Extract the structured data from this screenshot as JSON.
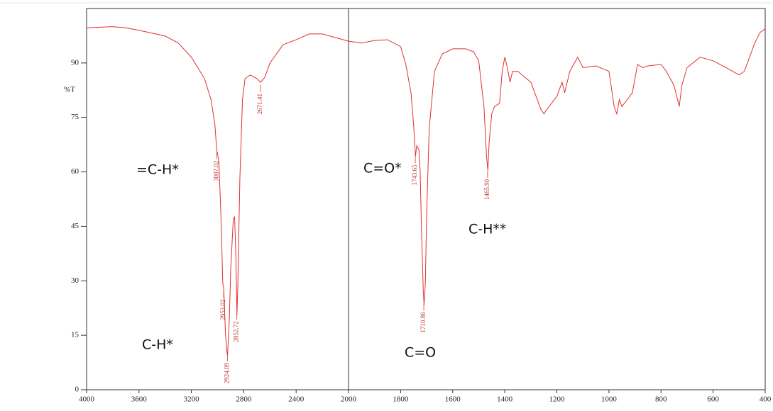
{
  "chart_data": {
    "type": "line",
    "ylabel": "%T",
    "color": "#e03030",
    "xlim": [
      4000,
      400
    ],
    "xbreak": 2000,
    "xticks": [
      4000,
      3600,
      3200,
      2800,
      2400,
      2000,
      1800,
      1600,
      1400,
      1200,
      1000,
      800,
      600,
      400
    ],
    "ylim": [
      0,
      105
    ],
    "yticks": [
      0,
      15,
      30,
      45,
      60,
      75,
      90
    ],
    "x": [
      4000,
      3800,
      3700,
      3600,
      3400,
      3300,
      3200,
      3100,
      3050,
      3020,
      3007,
      3000,
      2990,
      2975,
      2960,
      2953,
      2940,
      2930,
      2924,
      2910,
      2900,
      2880,
      2870,
      2860,
      2852,
      2845,
      2830,
      2810,
      2790,
      2750,
      2700,
      2671,
      2640,
      2600,
      2500,
      2400,
      2300,
      2200,
      2100,
      2000,
      1950,
      1900,
      1850,
      1800,
      1780,
      1760,
      1750,
      1743,
      1738,
      1730,
      1725,
      1720,
      1713,
      1710,
      1705,
      1700,
      1690,
      1670,
      1640,
      1600,
      1550,
      1520,
      1500,
      1480,
      1470,
      1465,
      1460,
      1450,
      1440,
      1420,
      1410,
      1400,
      1390,
      1380,
      1370,
      1350,
      1300,
      1260,
      1250,
      1230,
      1200,
      1180,
      1170,
      1150,
      1120,
      1100,
      1050,
      1000,
      980,
      970,
      960,
      950,
      930,
      910,
      890,
      870,
      850,
      800,
      780,
      750,
      730,
      720,
      700,
      650,
      600,
      550,
      500,
      480,
      460,
      440,
      420,
      400
    ],
    "values": [
      99.7,
      100,
      99.7,
      99,
      97.4,
      95.5,
      91.6,
      85.7,
      79.9,
      73,
      66.2,
      65,
      63,
      48.7,
      29.2,
      28,
      15.6,
      10.7,
      9.5,
      19.5,
      33,
      46.8,
      47.7,
      37,
      20.5,
      29,
      58,
      80,
      85.7,
      86.7,
      85.7,
      84.7,
      86,
      90,
      95,
      96.4,
      98,
      98,
      97,
      96,
      95.5,
      96.2,
      96.4,
      94.5,
      89.6,
      81.8,
      73,
      64.3,
      67.2,
      66.2,
      60.4,
      44.8,
      27.3,
      23.4,
      29.2,
      48.7,
      72,
      87.7,
      92.5,
      93.9,
      93.9,
      93.1,
      90.6,
      78,
      64.3,
      60.4,
      68.2,
      76,
      78,
      78.9,
      87.7,
      91.6,
      88.7,
      84.7,
      87.7,
      87.7,
      84.7,
      77,
      76,
      78,
      80.8,
      84.7,
      81.8,
      87.7,
      91.6,
      88.7,
      89.2,
      87.7,
      78,
      76,
      79.9,
      78,
      79.9,
      81.8,
      89.6,
      88.7,
      89.2,
      89.6,
      87.7,
      83.8,
      78,
      83.8,
      88.7,
      91.6,
      90.6,
      88.7,
      86.7,
      87.7,
      91.6,
      95.5,
      98.4,
      99.4
    ],
    "peaks": [
      {
        "x": 3007.02,
        "label": "3007.02"
      },
      {
        "x": 2953.02,
        "label": "2953.02"
      },
      {
        "x": 2924.09,
        "label": "2924.09"
      },
      {
        "x": 2852.72,
        "label": "2852.72"
      },
      {
        "x": 2671.41,
        "label": "2671.41"
      },
      {
        "x": 1743.65,
        "label": "1743.65"
      },
      {
        "x": 1710.86,
        "label": "1710.86"
      },
      {
        "x": 1465.9,
        "label": "1465.90"
      }
    ],
    "annotations": [
      "=C-H*",
      "C-H*",
      "C=O*",
      "C=O",
      "C-H**"
    ]
  }
}
